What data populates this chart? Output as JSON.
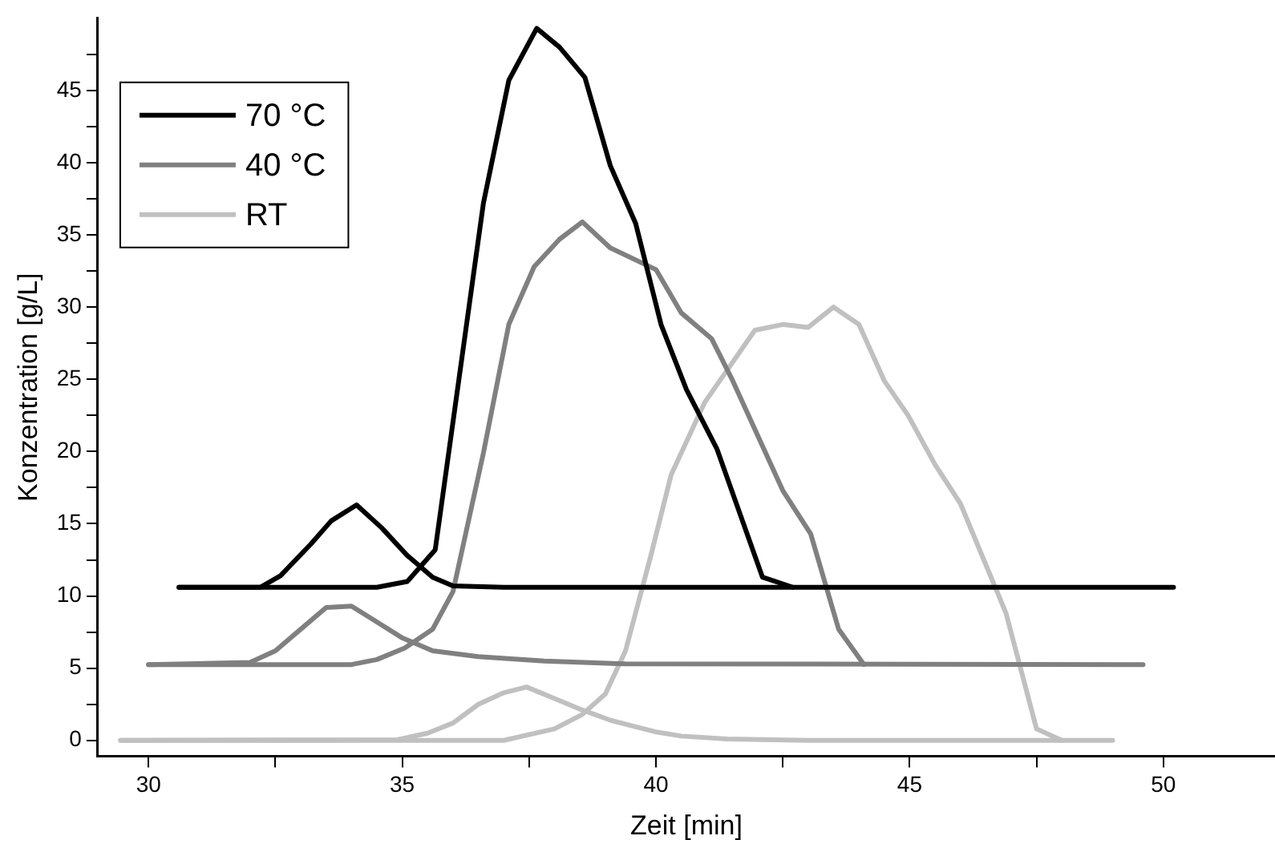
{
  "chart_data": {
    "type": "line",
    "xlabel": "Zeit [min]",
    "ylabel": "Konzentration [g/L]",
    "xlim": [
      29,
      52.2
    ],
    "ylim": [
      -1.1,
      50
    ],
    "xticks": [
      30,
      {
        "value": 32.5,
        "label": null
      },
      35,
      {
        "value": 37.5,
        "label": null
      },
      40,
      {
        "value": 42.5,
        "label": null
      },
      45,
      {
        "value": 47.5,
        "label": null
      },
      50
    ],
    "yticks": [
      0,
      {
        "value": 2.5,
        "label": null
      },
      5,
      {
        "value": 7.5,
        "label": null
      },
      10,
      {
        "value": 12.5,
        "label": null
      },
      15,
      {
        "value": 17.5,
        "label": null
      },
      20,
      {
        "value": 22.5,
        "label": null
      },
      25,
      {
        "value": 27.5,
        "label": null
      },
      30,
      {
        "value": 32.5,
        "label": null
      },
      35,
      {
        "value": 37.5,
        "label": null
      },
      40,
      {
        "value": 42.5,
        "label": null
      },
      45,
      {
        "value": 47.5,
        "label": null
      }
    ],
    "grid": false,
    "legend": "top left",
    "marker": "none",
    "line_style": "solid",
    "series": [
      {
        "name": "70 °C",
        "color": "#000000",
        "x": [
          30.6,
          32.2,
          32.6,
          33.2,
          33.6,
          34.1,
          34.6,
          35.1,
          35.6,
          36.0,
          37.0,
          50.2
        ],
        "values": [
          10.6,
          10.6,
          11.4,
          13.6,
          15.2,
          16.3,
          14.7,
          12.8,
          11.3,
          10.7,
          10.6,
          10.6
        ]
      },
      {
        "color": "#000000",
        "x": [
          30.6,
          34.5,
          35.1,
          35.65,
          36.6,
          37.1,
          37.65,
          38.1,
          38.6,
          39.1,
          39.6,
          40.1,
          40.6,
          41.2,
          42.1,
          42.7
        ],
        "values": [
          10.6,
          10.6,
          11.0,
          13.2,
          37.2,
          45.7,
          49.3,
          48.0,
          45.9,
          39.8,
          35.8,
          28.8,
          24.3,
          20.2,
          11.3,
          10.6
        ]
      },
      {
        "name": "40 °C",
        "color": "#808080",
        "x": [
          30.0,
          32.0,
          32.5,
          33.1,
          33.5,
          34.0,
          34.5,
          35.0,
          35.6,
          36.5,
          37.8,
          39.4,
          49.6
        ],
        "values": [
          5.25,
          5.4,
          6.2,
          8.0,
          9.2,
          9.3,
          8.2,
          7.1,
          6.2,
          5.8,
          5.5,
          5.3,
          5.25
        ]
      },
      {
        "color": "#808080",
        "x": [
          30.0,
          34.0,
          34.5,
          35.05,
          35.6,
          36.0,
          36.6,
          37.1,
          37.6,
          38.1,
          38.55,
          39.1,
          40.0,
          40.5,
          41.1,
          41.5,
          42.5,
          43.05,
          43.6,
          44.1
        ],
        "values": [
          5.25,
          5.25,
          5.6,
          6.4,
          7.7,
          10.3,
          19.9,
          28.8,
          32.8,
          34.7,
          35.9,
          34.1,
          32.6,
          29.6,
          27.8,
          25.0,
          17.3,
          14.3,
          7.7,
          5.25
        ]
      },
      {
        "name": "RT",
        "color": "#c0c0c0",
        "x": [
          29.45,
          34.9,
          35.5,
          36.0,
          36.5,
          37.0,
          37.45,
          38.0,
          38.55,
          39.1,
          39.98,
          40.5,
          41.4,
          43.0,
          49.0
        ],
        "values": [
          0,
          0.05,
          0.5,
          1.2,
          2.5,
          3.3,
          3.7,
          2.9,
          2.1,
          1.4,
          0.6,
          0.3,
          0.1,
          0,
          0
        ]
      },
      {
        "color": "#c0c0c0",
        "x": [
          29.45,
          37.0,
          38.0,
          38.55,
          39.0,
          39.4,
          39.9,
          40.3,
          40.96,
          41.95,
          42.5,
          43.0,
          43.5,
          44.0,
          44.5,
          44.97,
          45.5,
          46.0,
          46.9,
          47.5,
          48.0
        ],
        "values": [
          0,
          0,
          0.8,
          1.8,
          3.2,
          6.2,
          12.8,
          18.4,
          23.4,
          28.4,
          28.8,
          28.6,
          30.0,
          28.8,
          24.9,
          22.5,
          19.1,
          16.4,
          8.8,
          0.8,
          0
        ]
      }
    ]
  }
}
